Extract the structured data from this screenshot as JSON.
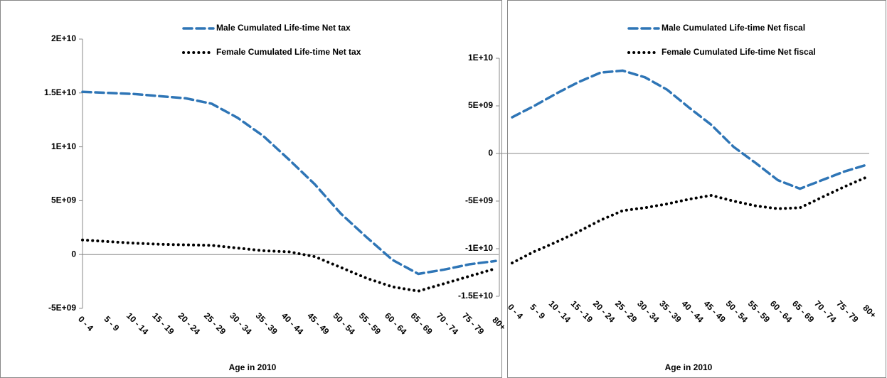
{
  "chart_data": [
    {
      "type": "line",
      "x_label": "Age in 2010",
      "categories": [
        "0 - 4",
        "5 - 9",
        "10 - 14",
        "15 - 19",
        "20 - 24",
        "25 - 29",
        "30 - 34",
        "35 - 39",
        "40 - 44",
        "45 - 49",
        "50 - 54",
        "55 - 59",
        "60 - 64",
        "65 - 69",
        "70 - 74",
        "75 - 79",
        "80+"
      ],
      "ylim": [
        -5000000000,
        20000000000
      ],
      "yticks": [
        {
          "value": -5000000000,
          "label": "-5E+09"
        },
        0,
        {
          "value": 5000000000,
          "label": "5E+09"
        },
        {
          "value": 10000000000,
          "label": "1E+10"
        },
        {
          "value": 15000000000,
          "label": "1.5E+10"
        },
        {
          "value": 20000000000,
          "label": "2E+10"
        }
      ],
      "series": [
        {
          "name": "Male Cumulated Life-time Net tax",
          "color": "#2e75b6",
          "dash": "dashed",
          "values": [
            15100000000,
            15000000000,
            14900000000,
            14700000000,
            14500000000,
            14000000000,
            12700000000,
            11000000000,
            8800000000,
            6500000000,
            3800000000,
            1600000000,
            -500000000,
            -1800000000,
            -1400000000,
            -900000000,
            -600000000
          ]
        },
        {
          "name": "Female Cumulated Life-time Net tax",
          "color": "#000000",
          "dash": "dotted",
          "values": [
            1350000000,
            1200000000,
            1050000000,
            950000000,
            900000000,
            850000000,
            600000000,
            350000000,
            250000000,
            -200000000,
            -1200000000,
            -2200000000,
            -3000000000,
            -3400000000,
            -2700000000,
            -2000000000,
            -1300000000
          ]
        }
      ]
    },
    {
      "type": "line",
      "x_label": "Age in 2010",
      "categories": [
        "0 - 4",
        "5 - 9",
        "10 - 14",
        "15 - 19",
        "20 - 24",
        "25 - 29",
        "30 - 34",
        "35 - 39",
        "40 - 44",
        "45 - 49",
        "50 - 54",
        "55 - 59",
        "60 - 64",
        "65 - 69",
        "70 - 74",
        "75 - 79",
        "80+"
      ],
      "ylim": [
        -15000000000,
        10000000000
      ],
      "yticks": [
        {
          "value": -15000000000,
          "label": "-1.5E+10"
        },
        {
          "value": -10000000000,
          "label": "-1E+10"
        },
        {
          "value": -5000000000,
          "label": "-5E+09"
        },
        0,
        {
          "value": 5000000000,
          "label": "5E+09"
        },
        {
          "value": 10000000000,
          "label": "1E+10"
        }
      ],
      "series": [
        {
          "name": "Male Cumulated Life-time Net fiscal",
          "color": "#2e75b6",
          "dash": "dashed",
          "values": [
            3800000000,
            5000000000,
            6300000000,
            7500000000,
            8500000000,
            8700000000,
            8000000000,
            6700000000,
            4800000000,
            3000000000,
            700000000,
            -1000000000,
            -2800000000,
            -3700000000,
            -2800000000,
            -1900000000,
            -1200000000
          ]
        },
        {
          "name": "Female Cumulated Life-time Net fiscal",
          "color": "#000000",
          "dash": "dotted",
          "values": [
            -11500000000,
            -10300000000,
            -9300000000,
            -8200000000,
            -7000000000,
            -6000000000,
            -5700000000,
            -5300000000,
            -4800000000,
            -4400000000,
            -5000000000,
            -5500000000,
            -5800000000,
            -5700000000,
            -4600000000,
            -3500000000,
            -2500000000
          ]
        }
      ]
    }
  ]
}
